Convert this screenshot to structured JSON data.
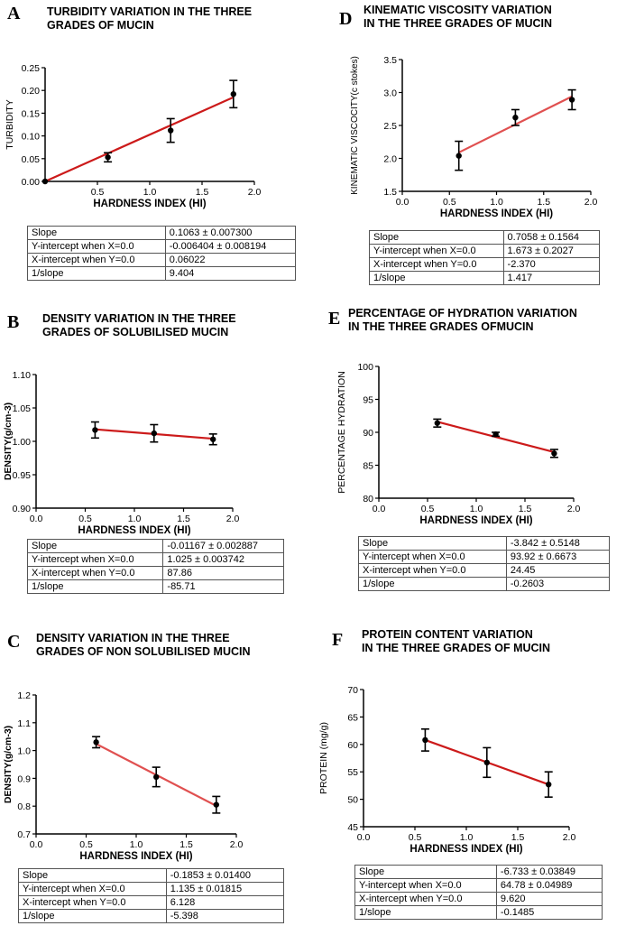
{
  "panels": [
    {
      "letter": "A",
      "title": [
        "TURBIDITY VARIATION IN THE THREE",
        "GRADES OF MUCIN"
      ],
      "line_color": "#cc1a1a",
      "stats": [
        {
          "label": "Slope",
          "value": "0.1063 ± 0.007300"
        },
        {
          "label": "Y-intercept when X=0.0",
          "value": "-0.006404 ± 0.008194"
        },
        {
          "label": "X-intercept when Y=0.0",
          "value": "0.06022"
        },
        {
          "label": "1/slope",
          "value": "9.404"
        }
      ]
    },
    {
      "letter": "D",
      "title": [
        "KINEMATIC VISCOSITY VARIATION",
        "IN THE THREE GRADES OF MUCIN"
      ],
      "line_color": "#e05050",
      "stats": [
        {
          "label": "Slope",
          "value": "0.7058 ± 0.1564"
        },
        {
          "label": "Y-intercept when X=0.0",
          "value": "1.673 ± 0.2027"
        },
        {
          "label": "X-intercept when Y=0.0",
          "value": "-2.370"
        },
        {
          "label": "1/slope",
          "value": "1.417"
        }
      ]
    },
    {
      "letter": "B",
      "title": [
        "DENSITY VARIATION IN THE THREE",
        "GRADES OF SOLUBILISED MUCIN"
      ],
      "line_color": "#cc1a1a",
      "stats": [
        {
          "label": "Slope",
          "value": "-0.01167 ± 0.002887"
        },
        {
          "label": "Y-intercept when X=0.0",
          "value": "1.025 ± 0.003742"
        },
        {
          "label": "X-intercept when Y=0.0",
          "value": "87.86"
        },
        {
          "label": "1/slope",
          "value": "-85.71"
        }
      ]
    },
    {
      "letter": "E",
      "title": [
        "PERCENTAGE OF HYDRATION VARIATION",
        "IN THE THREE GRADES OFMUCIN"
      ],
      "line_color": "#cc1a1a",
      "stats": [
        {
          "label": "Slope",
          "value": "-3.842 ± 0.5148"
        },
        {
          "label": "Y-intercept when X=0.0",
          "value": "93.92 ± 0.6673"
        },
        {
          "label": "X-intercept when Y=0.0",
          "value": "24.45"
        },
        {
          "label": "1/slope",
          "value": "-0.2603"
        }
      ]
    },
    {
      "letter": "C",
      "title": [
        "DENSITY VARIATION IN THE THREE",
        "GRADES OF NON SOLUBILISED MUCIN"
      ],
      "line_color": "#e05050",
      "stats": [
        {
          "label": "Slope",
          "value": "-0.1853 ± 0.01400"
        },
        {
          "label": "Y-intercept when X=0.0",
          "value": "1.135 ± 0.01815"
        },
        {
          "label": "X-intercept when Y=0.0",
          "value": "6.128"
        },
        {
          "label": "1/slope",
          "value": "-5.398"
        }
      ]
    },
    {
      "letter": "F",
      "title": [
        "PROTEIN CONTENT VARIATION",
        "IN THE THREE GRADES OF MUCIN"
      ],
      "line_color": "#cc1a1a",
      "stats": [
        {
          "label": "Slope",
          "value": "-6.733 ± 0.03849"
        },
        {
          "label": "Y-intercept when X=0.0",
          "value": "64.78 ± 0.04989"
        },
        {
          "label": "X-intercept when Y=0.0",
          "value": "9.620"
        },
        {
          "label": "1/slope",
          "value": "-0.1485"
        }
      ]
    }
  ],
  "chart_data": [
    {
      "panel": "A",
      "type": "scatter",
      "xlabel": "HARDNESS INDEX (HI)",
      "ylabel": "TURBIDITY",
      "xlim": [
        0,
        2.0
      ],
      "ylim": [
        0,
        0.25
      ],
      "xticks": [
        0.5,
        1.0,
        1.5,
        2.0
      ],
      "xtick_labels": [
        "0.5",
        "1.0",
        "1.5",
        "2.0"
      ],
      "yticks": [
        0,
        0.05,
        0.1,
        0.15,
        0.2,
        0.25
      ],
      "ytick_labels": [
        "0.00",
        "0.05",
        "0.10",
        "0.15",
        "0.20",
        "0.25"
      ],
      "points": [
        {
          "x": 0,
          "y": 0,
          "err": 0
        },
        {
          "x": 0.6,
          "y": 0.053,
          "err": 0.01
        },
        {
          "x": 1.2,
          "y": 0.112,
          "err": 0.026
        },
        {
          "x": 1.8,
          "y": 0.192,
          "err": 0.03
        }
      ],
      "fit": {
        "x": [
          0,
          1.8
        ],
        "y": [
          0,
          0.185
        ]
      }
    },
    {
      "panel": "D",
      "type": "scatter",
      "xlabel": "HARDNESS INDEX (HI)",
      "ylabel": "KINEMATIC VISCOCITY(c stokes)",
      "xlim": [
        0,
        2.0
      ],
      "ylim": [
        1.5,
        3.5
      ],
      "xticks": [
        0,
        0.5,
        1.0,
        1.5,
        2.0
      ],
      "xtick_labels": [
        "0.0",
        "0.5",
        "1.0",
        "1.5",
        "2.0"
      ],
      "yticks": [
        1.5,
        2.0,
        2.5,
        3.0,
        3.5
      ],
      "ytick_labels": [
        "1.5",
        "2.0",
        "2.5",
        "3.0",
        "3.5"
      ],
      "points": [
        {
          "x": 0.6,
          "y": 2.04,
          "err": 0.22
        },
        {
          "x": 1.2,
          "y": 2.62,
          "err": 0.12
        },
        {
          "x": 1.8,
          "y": 2.89,
          "err": 0.15
        }
      ],
      "fit": {
        "x": [
          0.6,
          1.8
        ],
        "y": [
          2.09,
          2.94
        ]
      }
    },
    {
      "panel": "B",
      "type": "scatter",
      "xlabel": "HARDNESS INDEX (HI)",
      "ylabel": "DENSITY(g/cm-3)",
      "xlim": [
        0,
        2.0
      ],
      "ylim": [
        0.9,
        1.1
      ],
      "xticks": [
        0,
        0.5,
        1.0,
        1.5,
        2.0
      ],
      "xtick_labels": [
        "0.0",
        "0.5",
        "1.0",
        "1.5",
        "2.0"
      ],
      "yticks": [
        0.9,
        0.95,
        1.0,
        1.05,
        1.1
      ],
      "ytick_labels": [
        "0.90",
        "0.95",
        "1.00",
        "1.05",
        "1.10"
      ],
      "points": [
        {
          "x": 0.6,
          "y": 1.017,
          "err": 0.012
        },
        {
          "x": 1.2,
          "y": 1.012,
          "err": 0.013
        },
        {
          "x": 1.8,
          "y": 1.003,
          "err": 0.008
        }
      ],
      "fit": {
        "x": [
          0.6,
          1.8
        ],
        "y": [
          1.018,
          1.004
        ]
      }
    },
    {
      "panel": "E",
      "type": "scatter",
      "xlabel": "HARDNESS INDEX (HI)",
      "ylabel": "PERCENTAGE HYDRATION",
      "xlim": [
        0,
        2.0
      ],
      "ylim": [
        80,
        100
      ],
      "xticks": [
        0,
        0.5,
        1.0,
        1.5,
        2.0
      ],
      "xtick_labels": [
        "0.0",
        "0.5",
        "1.0",
        "1.5",
        "2.0"
      ],
      "yticks": [
        80,
        85,
        90,
        95,
        100
      ],
      "ytick_labels": [
        "80",
        "85",
        "90",
        "95",
        "100"
      ],
      "points": [
        {
          "x": 0.6,
          "y": 91.4,
          "err": 0.6
        },
        {
          "x": 1.2,
          "y": 89.7,
          "err": 0.3
        },
        {
          "x": 1.8,
          "y": 86.8,
          "err": 0.6
        }
      ],
      "fit": {
        "x": [
          0.6,
          1.8
        ],
        "y": [
          91.6,
          87.0
        ]
      }
    },
    {
      "panel": "C",
      "type": "scatter",
      "xlabel": "HARDNESS INDEX (HI)",
      "ylabel": "DENSITY(g/cm-3)",
      "xlim": [
        0,
        2.0
      ],
      "ylim": [
        0.7,
        1.2
      ],
      "xticks": [
        0,
        0.5,
        1.0,
        1.5,
        2.0
      ],
      "xtick_labels": [
        "0.0",
        "0.5",
        "1.0",
        "1.5",
        "2.0"
      ],
      "yticks": [
        0.7,
        0.8,
        0.9,
        1.0,
        1.1,
        1.2
      ],
      "ytick_labels": [
        "0.7",
        "0.8",
        "0.9",
        "1.0",
        "1.1",
        "1.2"
      ],
      "points": [
        {
          "x": 0.6,
          "y": 1.03,
          "err": 0.02
        },
        {
          "x": 1.2,
          "y": 0.905,
          "err": 0.035
        },
        {
          "x": 1.8,
          "y": 0.805,
          "err": 0.03
        }
      ],
      "fit": {
        "x": [
          0.6,
          1.8
        ],
        "y": [
          1.024,
          0.801
        ]
      }
    },
    {
      "panel": "F",
      "type": "scatter",
      "xlabel": "HARDNESS INDEX (HI)",
      "ylabel": "PROTEIN (mg/g)",
      "xlim": [
        0,
        2.0
      ],
      "ylim": [
        45,
        70
      ],
      "xticks": [
        0,
        0.5,
        1.0,
        1.5,
        2.0
      ],
      "xtick_labels": [
        "0.0",
        "0.5",
        "1.0",
        "1.5",
        "2.0"
      ],
      "yticks": [
        45,
        50,
        55,
        60,
        65,
        70
      ],
      "ytick_labels": [
        "45",
        "50",
        "55",
        "60",
        "65",
        "70"
      ],
      "points": [
        {
          "x": 0.6,
          "y": 60.8,
          "err": 2.0
        },
        {
          "x": 1.2,
          "y": 56.7,
          "err": 2.7
        },
        {
          "x": 1.8,
          "y": 52.7,
          "err": 2.3
        }
      ],
      "fit": {
        "x": [
          0.6,
          1.8
        ],
        "y": [
          60.8,
          52.7
        ]
      }
    }
  ]
}
